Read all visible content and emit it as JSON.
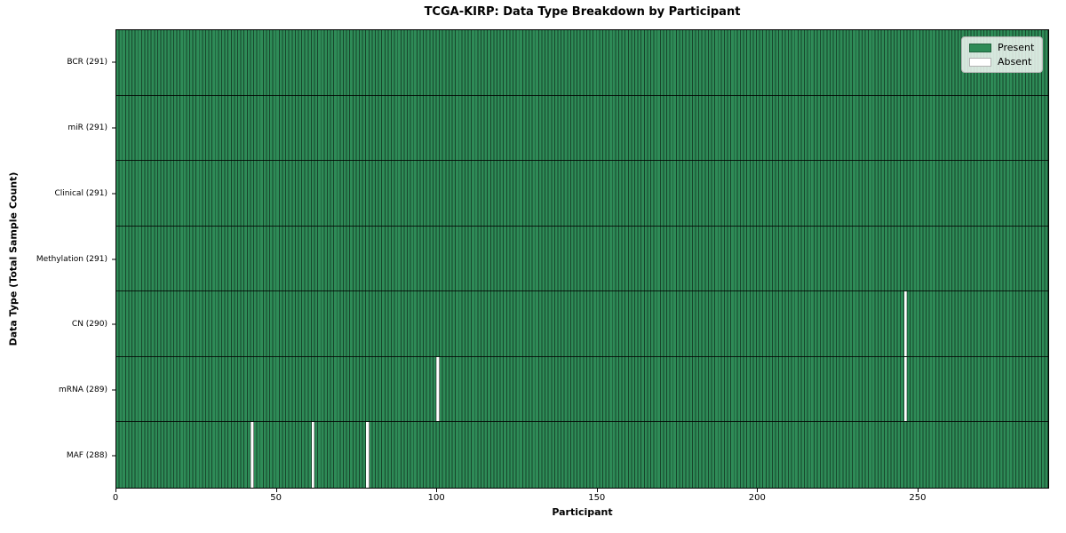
{
  "chart_data": {
    "type": "heatmap",
    "title": "TCGA-KIRP: Data Type Breakdown by Participant",
    "xlabel": "Participant",
    "ylabel": "Data Type (Total Sample Count)",
    "n_participants": 291,
    "xlim": [
      0,
      291
    ],
    "x_ticks": [
      0,
      50,
      100,
      150,
      200,
      250
    ],
    "grid": false,
    "legend_position": "upper right",
    "rows": [
      {
        "data_type": "BCR",
        "label": "BCR (291)",
        "present_count": 291,
        "missing_participants": []
      },
      {
        "data_type": "miR",
        "label": "miR (291)",
        "present_count": 291,
        "missing_participants": []
      },
      {
        "data_type": "Clinical",
        "label": "Clinical (291)",
        "present_count": 291,
        "missing_participants": []
      },
      {
        "data_type": "Methylation",
        "label": "Methylation (291)",
        "present_count": 291,
        "missing_participants": []
      },
      {
        "data_type": "CN",
        "label": "CN (290)",
        "present_count": 290,
        "missing_participants": [
          246
        ]
      },
      {
        "data_type": "mRNA",
        "label": "mRNA (289)",
        "present_count": 289,
        "missing_participants": [
          100,
          246
        ]
      },
      {
        "data_type": "MAF",
        "label": "MAF (288)",
        "present_count": 288,
        "missing_participants": [
          42,
          61,
          78
        ]
      }
    ],
    "legend": [
      {
        "label": "Present",
        "color": "#2e8b57"
      },
      {
        "label": "Absent",
        "color": "#ffffff"
      }
    ],
    "colors": {
      "present": "#2e8b57",
      "absent": "#ffffff",
      "cell_edge": "rgba(0,0,0,0.5)",
      "row_separator": "rgba(0,0,0,0.8)",
      "spine": "#000000"
    }
  }
}
